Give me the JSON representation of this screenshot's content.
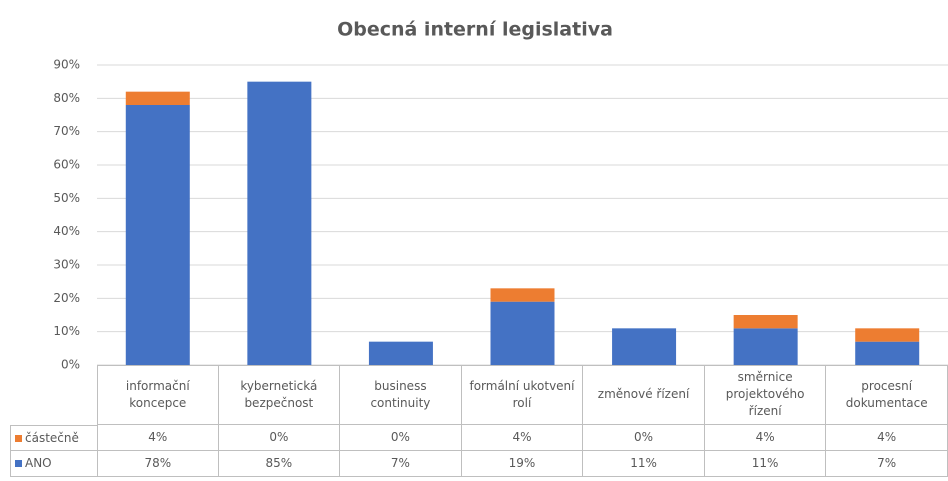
{
  "chart_data": {
    "type": "bar",
    "stacked": true,
    "title": "Obecná interní legislativa",
    "categories": [
      "informační koncepce",
      "kybernetická bezpečnost",
      "business continuity",
      "formální ukotvení rolí",
      "změnové řízení",
      "směrnice projektového řízení",
      "procesní dokumentace"
    ],
    "series": [
      {
        "name": "částečně",
        "color": "#ed7d31",
        "values": [
          4,
          0,
          0,
          4,
          0,
          4,
          4
        ],
        "value_labels": [
          "4%",
          "0%",
          "0%",
          "4%",
          "0%",
          "4%",
          "4%"
        ]
      },
      {
        "name": "ANO",
        "color": "#4472c4",
        "values": [
          78,
          85,
          7,
          19,
          11,
          11,
          7
        ],
        "value_labels": [
          "78%",
          "85%",
          "7%",
          "19%",
          "11%",
          "11%",
          "7%"
        ]
      }
    ],
    "ylim": [
      0,
      90
    ],
    "yticks": [
      {
        "value": 0,
        "label": "0%"
      },
      {
        "value": 10,
        "label": "10%"
      },
      {
        "value": 20,
        "label": "20%"
      },
      {
        "value": 30,
        "label": "30%"
      },
      {
        "value": 40,
        "label": "40%"
      },
      {
        "value": 50,
        "label": "50%"
      },
      {
        "value": 60,
        "label": "60%"
      },
      {
        "value": 70,
        "label": "70%"
      },
      {
        "value": 80,
        "label": "80%"
      },
      {
        "value": 90,
        "label": "90%"
      }
    ],
    "grid": true
  }
}
